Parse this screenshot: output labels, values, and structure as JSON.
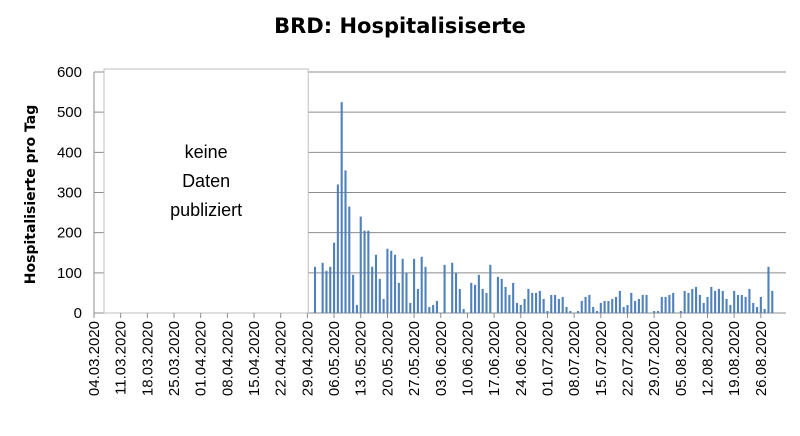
{
  "chart_data": {
    "type": "bar",
    "title": "BRD: Hospitalisiserte",
    "xlabel": "",
    "ylabel": "Hospitalisierte pro Tag",
    "ylim": [
      0,
      600
    ],
    "y_ticks": [
      "0",
      "100",
      "200",
      "300",
      "400",
      "500",
      "600"
    ],
    "x_tick_labels": [
      "04.03.2020",
      "11.03.2020",
      "18.03.2020",
      "25.03.2020",
      "01.04.2020",
      "08.04.2020",
      "15.04.2020",
      "22.04.2020",
      "29.04.2020",
      "06.05.2020",
      "13.05.2020",
      "20.05.2020",
      "27.05.2020",
      "03.06.2020",
      "10.06.2020",
      "17.06.2020",
      "24.06.2020",
      "01.07.2020",
      "08.07.2020",
      "15.07.2020",
      "22.07.2020",
      "29.07.2020",
      "05.08.2020",
      "12.08.2020",
      "19.08.2020",
      "26.08.2020"
    ],
    "annotation_lines": [
      "keine",
      "Daten",
      "publiziert"
    ],
    "grid": true,
    "bar_color": "#4f81bd",
    "series": [
      {
        "x": [
          "2020-05-01",
          "2020-05-02",
          "2020-05-03",
          "2020-05-04",
          "2020-05-05",
          "2020-05-06",
          "2020-05-07",
          "2020-05-08",
          "2020-05-09",
          "2020-05-10",
          "2020-05-11",
          "2020-05-12",
          "2020-05-13",
          "2020-05-14",
          "2020-05-15",
          "2020-05-16",
          "2020-05-17",
          "2020-05-18",
          "2020-05-19",
          "2020-05-20",
          "2020-05-21",
          "2020-05-22",
          "2020-05-23",
          "2020-05-24",
          "2020-05-25",
          "2020-05-26",
          "2020-05-27",
          "2020-05-28",
          "2020-05-29",
          "2020-05-30",
          "2020-05-31",
          "2020-06-01",
          "2020-06-02",
          "2020-06-03",
          "2020-06-04",
          "2020-06-05",
          "2020-06-06",
          "2020-06-07",
          "2020-06-08",
          "2020-06-09",
          "2020-06-10",
          "2020-06-11",
          "2020-06-12",
          "2020-06-13",
          "2020-06-14",
          "2020-06-15",
          "2020-06-16",
          "2020-06-17",
          "2020-06-18",
          "2020-06-19",
          "2020-06-20",
          "2020-06-21",
          "2020-06-22",
          "2020-06-23",
          "2020-06-24",
          "2020-06-25",
          "2020-06-26",
          "2020-06-27",
          "2020-06-28",
          "2020-06-29",
          "2020-06-30",
          "2020-07-01",
          "2020-07-02",
          "2020-07-03",
          "2020-07-04",
          "2020-07-05",
          "2020-07-06",
          "2020-07-07",
          "2020-07-08",
          "2020-07-09",
          "2020-07-10",
          "2020-07-11",
          "2020-07-12",
          "2020-07-13",
          "2020-07-14",
          "2020-07-15",
          "2020-07-16",
          "2020-07-17",
          "2020-07-18",
          "2020-07-19",
          "2020-07-20",
          "2020-07-21",
          "2020-07-22",
          "2020-07-23",
          "2020-07-24",
          "2020-07-25",
          "2020-07-26",
          "2020-07-27",
          "2020-07-28",
          "2020-07-29",
          "2020-07-30",
          "2020-07-31",
          "2020-08-01",
          "2020-08-02",
          "2020-08-03",
          "2020-08-04",
          "2020-08-05",
          "2020-08-06",
          "2020-08-07",
          "2020-08-08",
          "2020-08-09",
          "2020-08-10",
          "2020-08-11",
          "2020-08-12",
          "2020-08-13",
          "2020-08-14",
          "2020-08-15",
          "2020-08-16",
          "2020-08-17",
          "2020-08-18",
          "2020-08-19",
          "2020-08-20",
          "2020-08-21",
          "2020-08-22",
          "2020-08-23",
          "2020-08-24",
          "2020-08-25",
          "2020-08-26",
          "2020-08-27",
          "2020-08-28",
          "2020-08-29",
          "2020-08-30"
        ],
        "values": [
          115,
          0,
          125,
          105,
          115,
          175,
          320,
          525,
          355,
          265,
          95,
          20,
          240,
          205,
          205,
          115,
          145,
          85,
          35,
          160,
          155,
          145,
          75,
          135,
          100,
          25,
          135,
          60,
          140,
          115,
          15,
          20,
          30,
          0,
          120,
          0,
          125,
          100,
          60,
          10,
          0,
          75,
          70,
          95,
          60,
          50,
          120,
          0,
          90,
          85,
          65,
          45,
          75,
          25,
          20,
          35,
          60,
          50,
          50,
          55,
          35,
          5,
          45,
          45,
          35,
          40,
          15,
          5,
          0,
          5,
          30,
          40,
          45,
          15,
          5,
          25,
          30,
          30,
          35,
          40,
          55,
          15,
          20,
          50,
          30,
          35,
          45,
          45,
          0,
          5,
          5,
          40,
          40,
          45,
          50,
          0,
          5,
          55,
          50,
          60,
          65,
          45,
          25,
          40,
          65,
          55,
          60,
          55,
          35,
          20,
          55,
          45,
          45,
          40,
          60,
          25,
          15,
          40,
          10,
          115,
          55,
          0
        ]
      }
    ]
  }
}
